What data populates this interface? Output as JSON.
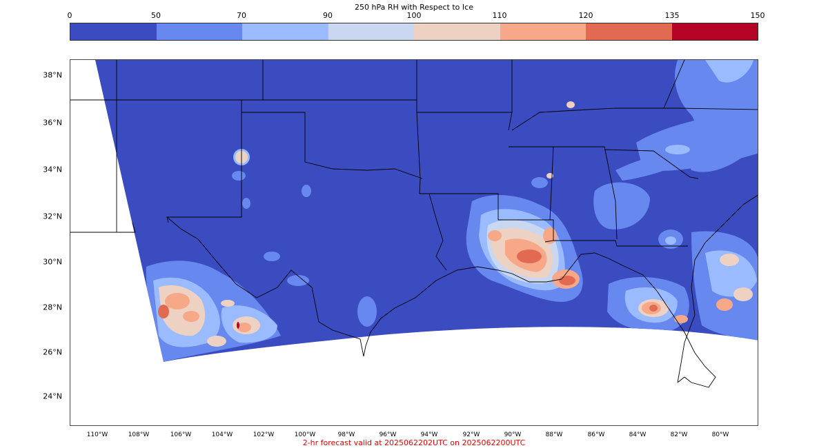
{
  "title": "250 hPa RH with Respect to Ice",
  "colorbar": {
    "ticks": [
      "0",
      "50",
      "70",
      "90",
      "100",
      "110",
      "120",
      "135",
      "150"
    ],
    "colors": [
      "#3b4cc0",
      "#6788ee",
      "#9abbff",
      "#c9d7f0",
      "#edd1c2",
      "#f7a889",
      "#e26952",
      "#b40426"
    ]
  },
  "lat_labels": [
    "38°N",
    "36°N",
    "34°N",
    "32°N",
    "30°N",
    "28°N",
    "26°N",
    "24°N"
  ],
  "lon_labels": [
    "110°W",
    "108°W",
    "106°W",
    "104°W",
    "102°W",
    "100°W",
    "98°W",
    "96°W",
    "94°W",
    "92°W",
    "90°W",
    "88°W",
    "86°W",
    "84°W",
    "82°W",
    "80°W"
  ],
  "footer": "2-hr forecast valid at 2025062202UTC on 2025062200UTC",
  "icons": {
    "map": "rh-contour-map"
  }
}
